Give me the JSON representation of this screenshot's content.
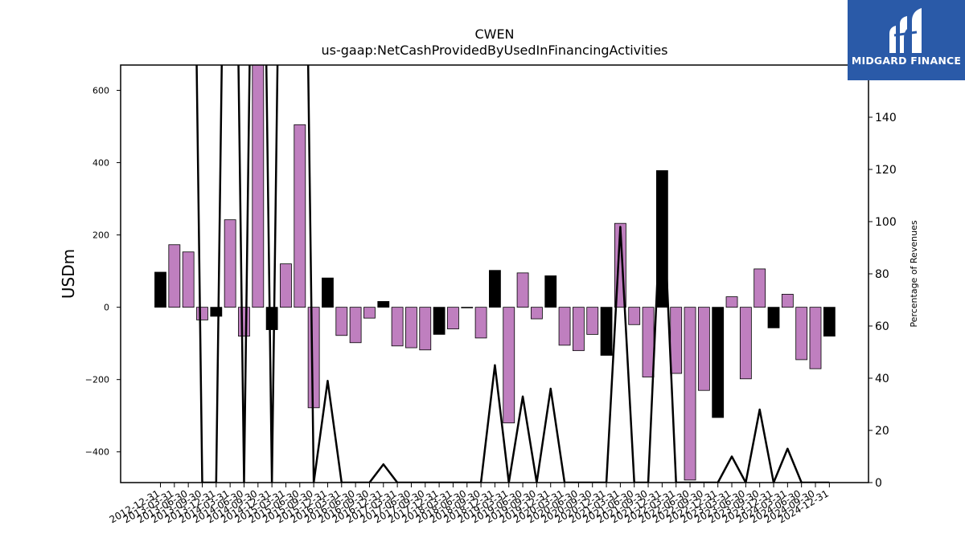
{
  "brand": {
    "name": "MIDGARD FINANCE",
    "color": "#2a5aa8"
  },
  "chart_data": {
    "type": "bar",
    "title": "CWEN",
    "subtitle": "us-gaap:NetCashProvidedByUsedInFinancingActivities",
    "ylabel": "USDm",
    "y2label": "Percentage of Revenues",
    "ylim": [
      -485,
      670
    ],
    "y2lim": [
      0,
      160
    ],
    "yticks": [
      -400,
      -200,
      0,
      200,
      400,
      600
    ],
    "y2ticks": [
      0,
      20,
      40,
      60,
      80,
      100,
      120,
      140
    ],
    "grid": false,
    "colors": {
      "annual": "#000000",
      "quarterly": "#bf7fbf",
      "line": "#000000"
    },
    "categories": [
      "2012-12-31",
      "2013-03-31",
      "2013-06-30",
      "2013-09-30",
      "2013-12-31",
      "2014-03-31",
      "2014-06-30",
      "2014-09-30",
      "2014-12-31",
      "2015-03-31",
      "2015-06-30",
      "2015-09-30",
      "2015-12-31",
      "2016-03-31",
      "2016-06-30",
      "2016-09-30",
      "2016-12-31",
      "2017-03-31",
      "2017-06-30",
      "2017-09-30",
      "2017-12-31",
      "2018-03-31",
      "2018-06-30",
      "2018-09-30",
      "2018-12-31",
      "2019-03-31",
      "2019-06-30",
      "2019-09-30",
      "2019-12-31",
      "2020-03-31",
      "2020-06-30",
      "2020-09-30",
      "2020-12-31",
      "2021-03-31",
      "2021-06-30",
      "2021-09-30",
      "2021-12-31",
      "2022-03-31",
      "2022-06-30",
      "2022-09-30",
      "2022-12-31",
      "2023-03-31",
      "2023-06-30",
      "2023-09-30",
      "2023-12-31",
      "2024-03-31",
      "2024-06-30",
      "2024-09-30",
      "2024-12-31"
    ],
    "values": [
      97,
      173,
      153,
      -35,
      -25,
      242,
      -80,
      690,
      -62,
      120,
      505,
      -278,
      81,
      -78,
      -98,
      -30,
      16,
      -107,
      -112,
      -118,
      -75,
      -60,
      0,
      -85,
      102,
      -320,
      95,
      -32,
      87,
      -105,
      -120,
      -75,
      -133,
      232,
      -48,
      -193,
      378,
      -183,
      -478,
      -230,
      -305,
      29,
      -198,
      106,
      -57,
      36,
      -145,
      -170,
      -80
    ],
    "annual": [
      true,
      false,
      false,
      false,
      true,
      false,
      false,
      false,
      true,
      false,
      false,
      false,
      true,
      false,
      false,
      false,
      true,
      false,
      false,
      false,
      true,
      false,
      false,
      false,
      true,
      false,
      false,
      false,
      true,
      false,
      false,
      false,
      true,
      false,
      false,
      false,
      true,
      false,
      false,
      false,
      true,
      false,
      false,
      false,
      true,
      false,
      false,
      false,
      true
    ],
    "pct_of_revenue": [
      400,
      400,
      400,
      0,
      0,
      400,
      0,
      400,
      0,
      400,
      400,
      0,
      39,
      0,
      0,
      0,
      7,
      0,
      0,
      0,
      0,
      0,
      0,
      0,
      45,
      0,
      33,
      0,
      36,
      0,
      0,
      0,
      0,
      98,
      0,
      0,
      118,
      0,
      0,
      0,
      0,
      10,
      0,
      28,
      0,
      13,
      0,
      0,
      0
    ]
  }
}
